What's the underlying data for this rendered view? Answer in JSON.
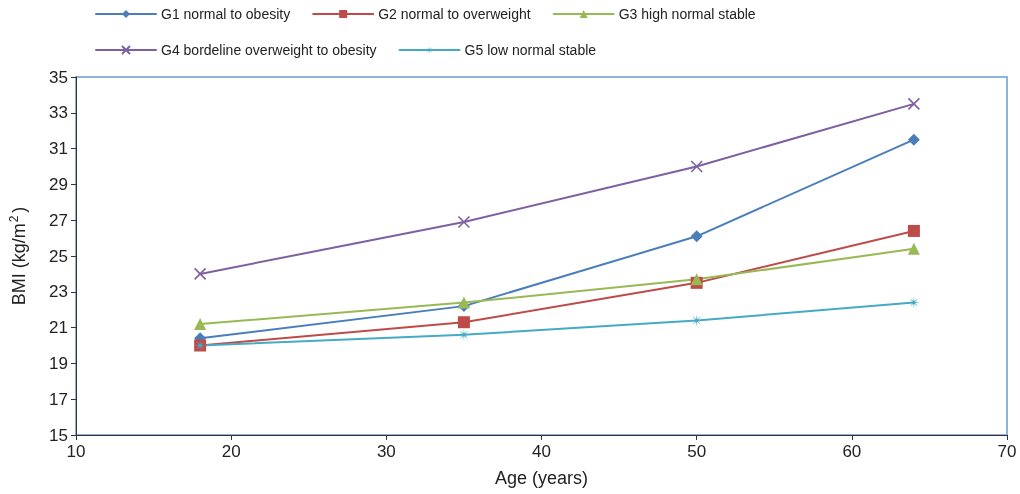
{
  "chart_data": {
    "type": "line",
    "xlabel": "Age (years)",
    "ylabel": "BMI (kg/m$^{2}$)",
    "x": [
      18,
      35,
      50,
      64
    ],
    "series": [
      {
        "name": "G1 normal to obesity",
        "color": "#4a7ebb",
        "marker": "diamond",
        "values": [
          20.4,
          22.2,
          26.1,
          31.5
        ]
      },
      {
        "name": "G2 normal to overweight",
        "color": "#be4b48",
        "marker": "square",
        "values": [
          20.0,
          21.3,
          23.5,
          26.4
        ]
      },
      {
        "name": "G3 high normal stable",
        "color": "#98b954",
        "marker": "triangle",
        "values": [
          21.2,
          22.4,
          23.7,
          25.4
        ]
      },
      {
        "name": "G4 bordeline overweight to obesity",
        "color": "#7d60a0",
        "marker": "cross",
        "values": [
          24.0,
          26.9,
          30.0,
          33.5
        ]
      },
      {
        "name": "G5 low normal stable",
        "color": "#46aac5",
        "marker": "star",
        "values": [
          20.0,
          20.6,
          21.4,
          22.4
        ]
      }
    ],
    "xlim": [
      10,
      70
    ],
    "xticks": [
      10,
      20,
      30,
      40,
      50,
      60,
      70
    ],
    "ylim": [
      15,
      35
    ],
    "yticks": [
      15,
      17,
      19,
      21,
      23,
      25,
      27,
      29,
      31,
      33,
      35
    ],
    "grid": false,
    "legend": "top"
  }
}
